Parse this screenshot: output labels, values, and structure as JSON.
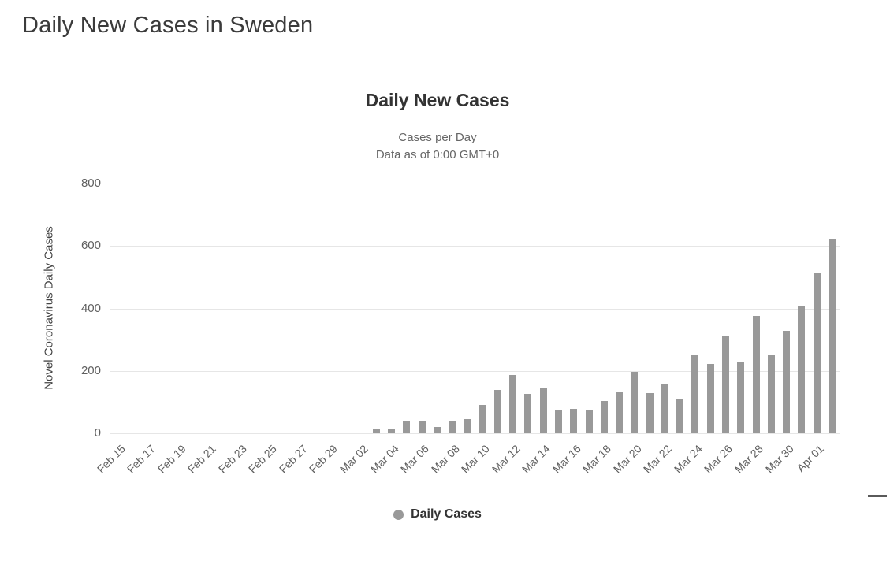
{
  "page": {
    "title": "Daily New Cases in Sweden"
  },
  "chart": {
    "title": "Daily New Cases",
    "subtitle_line1": "Cases per Day",
    "subtitle_line2": "Data as of 0:00 GMT+0",
    "y_axis_title": "Novel Coronavirus Daily Cases",
    "legend_label": "Daily Cases"
  },
  "colors": {
    "bar": "#999999",
    "grid": "#e6e6e6",
    "axis_text": "#606060",
    "title_text": "#333333"
  },
  "chart_data": {
    "type": "bar",
    "title": "Daily New Cases",
    "subtitle": "Cases per Day / Data as of 0:00 GMT+0",
    "xlabel": "",
    "ylabel": "Novel Coronavirus Daily Cases",
    "ylim": [
      0,
      800
    ],
    "yticks": [
      0,
      200,
      400,
      600,
      800
    ],
    "grid": true,
    "legend_position": "bottom",
    "x_tick_every": 2,
    "categories": [
      "Feb 15",
      "Feb 16",
      "Feb 17",
      "Feb 18",
      "Feb 19",
      "Feb 20",
      "Feb 21",
      "Feb 22",
      "Feb 23",
      "Feb 24",
      "Feb 25",
      "Feb 26",
      "Feb 27",
      "Feb 28",
      "Feb 29",
      "Mar 01",
      "Mar 02",
      "Mar 03",
      "Mar 04",
      "Mar 05",
      "Mar 06",
      "Mar 07",
      "Mar 08",
      "Mar 09",
      "Mar 10",
      "Mar 11",
      "Mar 12",
      "Mar 13",
      "Mar 14",
      "Mar 15",
      "Mar 16",
      "Mar 17",
      "Mar 18",
      "Mar 19",
      "Mar 20",
      "Mar 21",
      "Mar 22",
      "Mar 23",
      "Mar 24",
      "Mar 25",
      "Mar 26",
      "Mar 27",
      "Mar 28",
      "Mar 29",
      "Mar 30",
      "Mar 31",
      "Apr 01",
      "Apr 02"
    ],
    "series": [
      {
        "name": "Daily Cases",
        "color": "#999999",
        "values": [
          0,
          0,
          0,
          0,
          0,
          0,
          0,
          0,
          0,
          0,
          0,
          0,
          0,
          0,
          0,
          0,
          0,
          12,
          15,
          40,
          40,
          20,
          40,
          45,
          90,
          140,
          186,
          125,
          143,
          75,
          78,
          73,
          103,
          135,
          197,
          130,
          160,
          110,
          250,
          222,
          310,
          228,
          375,
          250,
          328,
          407,
          512,
          620
        ]
      }
    ]
  }
}
